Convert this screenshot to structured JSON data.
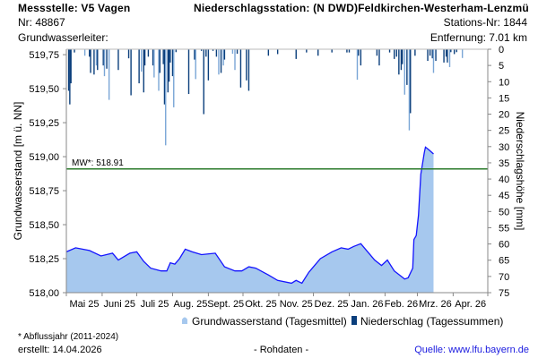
{
  "header": {
    "messstelle": "Messstelle: V5 Vagen",
    "nr": "Nr: 48867",
    "grundwasserleiter": "Grundwasserleiter:",
    "station": "Niederschlagsstation: (N DWD)Feldkirchen-Westerham-Lenzmü",
    "stations_nr": "Stations-Nr: 1844",
    "entfernung": "Entfernung: 7.01 km"
  },
  "footer": {
    "note": "* Abflussjahr (2011-2024)",
    "created": "erstellt:  14.04.2026",
    "raw": "- Rohdaten -",
    "source": "Quelle: www.lfu.bayern.de"
  },
  "colors": {
    "fill": "#a6c8ee",
    "line": "#1414ff",
    "mw": "#2a7a2a",
    "bar_dark": "#0b3f7c",
    "bar_light": "#7aa6d6"
  },
  "chart_data": {
    "type": "area",
    "title": "",
    "xlabel": "",
    "ylabel": "Grundwasserstand [m ü. NN]",
    "y2label": "Niederschlagshöhe [mm]",
    "x_unit": "days since 01.05.2025",
    "xlim": [
      0,
      365
    ],
    "ylim": [
      518.0,
      519.79
    ],
    "y2lim": [
      0,
      75
    ],
    "y2_inverted": true,
    "yticks": [
      "518,00",
      "518,25",
      "518,50",
      "518,75",
      "519,00",
      "519,25",
      "519,50",
      "519,75"
    ],
    "ytick_values": [
      518.0,
      518.25,
      518.5,
      518.75,
      519.0,
      519.25,
      519.5,
      519.75
    ],
    "y2ticks": [
      "0",
      "5",
      "10",
      "15",
      "20",
      "25",
      "30",
      "35",
      "40",
      "45",
      "50",
      "55",
      "60",
      "65",
      "70",
      "75"
    ],
    "xticks": [
      "Mai 25",
      "Juni 25",
      "Juli 25",
      "Aug. 25",
      "Sept. 25",
      "Okt. 25",
      "Nov. 25",
      "Dez. 25",
      "Jan. 26",
      "Feb. 26",
      "Mrz. 26",
      "Apr. 26"
    ],
    "month_starts": [
      0,
      31,
      61,
      92,
      123,
      153,
      184,
      214,
      245,
      276,
      304,
      335,
      365
    ],
    "legend": [
      "Grundwasserstand (Tagesmittel)",
      "Niederschlag (Tagessummen)"
    ],
    "legend_position": "bottom",
    "mw": {
      "label": "MW*: 518.91",
      "value": 518.91
    },
    "groundwater": {
      "x": [
        0,
        8,
        20,
        30,
        40,
        45,
        55,
        61,
        67,
        73,
        82,
        87,
        90,
        94,
        98,
        103,
        109,
        117,
        129,
        137,
        146,
        152,
        158,
        164,
        175,
        183,
        195,
        199,
        204,
        210,
        214,
        220,
        230,
        238,
        244,
        249,
        255,
        261,
        267,
        273,
        278,
        284,
        293,
        296,
        300,
        301,
        303,
        305,
        307,
        310,
        311,
        314,
        318
      ],
      "y": [
        518.3,
        518.33,
        518.31,
        518.27,
        518.29,
        518.24,
        518.29,
        518.3,
        518.23,
        518.18,
        518.16,
        518.16,
        518.22,
        518.21,
        518.25,
        518.32,
        518.3,
        518.28,
        518.29,
        518.19,
        518.16,
        518.16,
        518.19,
        518.18,
        518.13,
        518.09,
        518.07,
        518.09,
        518.07,
        518.15,
        518.19,
        518.25,
        518.3,
        518.33,
        518.32,
        518.34,
        518.36,
        518.3,
        518.24,
        518.2,
        518.24,
        518.16,
        518.1,
        518.11,
        518.18,
        518.39,
        518.42,
        518.57,
        518.87,
        519.03,
        519.07,
        519.05,
        519.02
      ]
    },
    "precipitation": {
      "x": [
        2,
        3,
        4,
        7,
        16,
        20,
        21,
        24,
        26,
        27,
        32,
        33,
        35,
        37,
        45,
        54,
        56,
        63,
        65,
        67,
        68,
        71,
        75,
        76,
        80,
        81,
        84,
        85,
        86,
        88,
        89,
        90,
        92,
        93,
        95,
        106,
        111,
        112,
        117,
        119,
        121,
        123,
        127,
        130,
        132,
        134,
        136,
        137,
        144,
        146,
        148,
        151,
        156,
        158,
        175,
        183,
        199,
        208,
        218,
        230,
        243,
        245,
        252,
        253,
        255,
        269,
        271,
        280,
        284,
        286,
        288,
        290,
        291,
        293,
        295,
        297,
        298,
        302,
        313,
        315,
        317,
        318,
        320,
        327,
        329,
        330,
        332,
        333,
        336,
        338,
        343
      ],
      "y": [
        12.8,
        17,
        10.5,
        1,
        2,
        2.3,
        7.3,
        7.8,
        5,
        6.4,
        5,
        8.3,
        6,
        15.6,
        6.4,
        2.8,
        14.2,
        10.5,
        6.9,
        13.3,
        5,
        2.3,
        5,
        8.7,
        12.8,
        7.3,
        4.6,
        17,
        29.6,
        13.3,
        10,
        4.1,
        8.3,
        17.9,
        0.9,
        13.8,
        3.2,
        9.2,
        0.5,
        20,
        2.3,
        9.6,
        0.5,
        2.3,
        7.8,
        7.3,
        5,
        3.2,
        1.4,
        6.4,
        1.4,
        11.8,
        9.6,
        12.8,
        2,
        1.5,
        3,
        1,
        2,
        1,
        1,
        1,
        9.4,
        2,
        5,
        2,
        5,
        1,
        3,
        2.3,
        7.8,
        6.4,
        4.6,
        14,
        11,
        25,
        19.7,
        2,
        3.6,
        2,
        2.8,
        7.3,
        3.6,
        4.1,
        2.3,
        4.1,
        5.5,
        0.9,
        1.5,
        0.9,
        2.7
      ],
      "shade": [
        "d",
        "d",
        "d",
        "d",
        "l",
        "d",
        "d",
        "d",
        "l",
        "d",
        "d",
        "l",
        "d",
        "l",
        "d",
        "d",
        "d",
        "d",
        "l",
        "d",
        "d",
        "d",
        "d",
        "l",
        "l",
        "d",
        "d",
        "d",
        "l",
        "d",
        "d",
        "d",
        "d",
        "l",
        "d",
        "d",
        "d",
        "l",
        "d",
        "d",
        "d",
        "d",
        "d",
        "d",
        "l",
        "d",
        "l",
        "d",
        "l",
        "l",
        "d",
        "d",
        "d",
        "d",
        "d",
        "d",
        "d",
        "d",
        "d",
        "d",
        "d",
        "d",
        "l",
        "d",
        "d",
        "d",
        "d",
        "d",
        "d",
        "d",
        "d",
        "d",
        "d",
        "l",
        "d",
        "l",
        "d",
        "d",
        "d",
        "d",
        "d",
        "l",
        "d",
        "d",
        "d",
        "d",
        "l",
        "d",
        "d",
        "d",
        "l"
      ]
    }
  }
}
